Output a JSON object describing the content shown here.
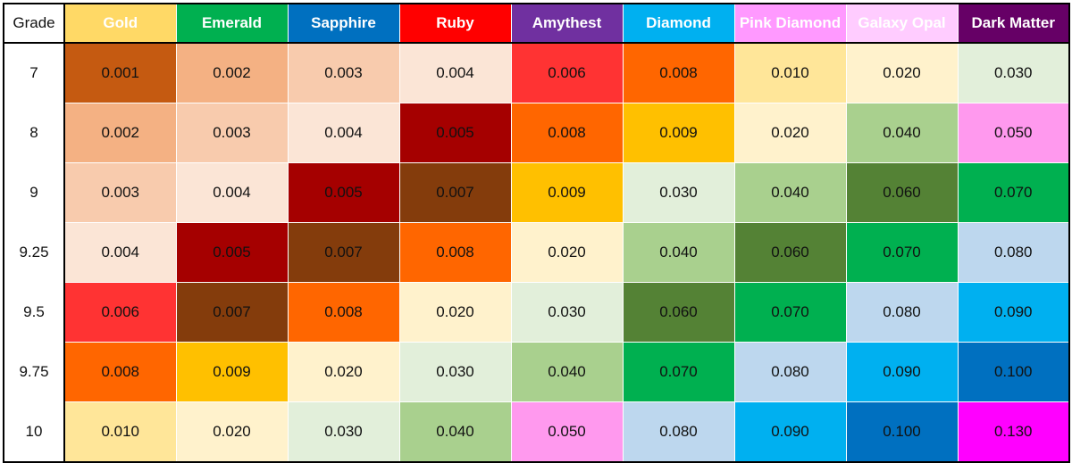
{
  "header": {
    "grade_label": "Grade",
    "columns": [
      {
        "label": "Gold",
        "bg": "#FFD966",
        "fg": "#FFFFFF"
      },
      {
        "label": "Emerald",
        "bg": "#00B050",
        "fg": "#FFFFFF"
      },
      {
        "label": "Sapphire",
        "bg": "#0070C0",
        "fg": "#FFFFFF"
      },
      {
        "label": "Ruby",
        "bg": "#FF0000",
        "fg": "#FFFFFF"
      },
      {
        "label": "Amythest",
        "bg": "#7030A0",
        "fg": "#FFFFFF"
      },
      {
        "label": "Diamond",
        "bg": "#00B0F0",
        "fg": "#FFFFFF"
      },
      {
        "label": "Pink Diamond",
        "bg": "#FF99FF",
        "fg": "#FFFFFF"
      },
      {
        "label": "Galaxy Opal",
        "bg": "#FFCCFF",
        "fg": "#FFFFFF"
      },
      {
        "label": "Dark Matter",
        "bg": "#660066",
        "fg": "#FFFFFF"
      }
    ]
  },
  "colors": {
    "0.001": "#C55A11",
    "0.002": "#F4B183",
    "0.003": "#F8CBAD",
    "0.004": "#FBE5D6",
    "0.005": "#A50000",
    "0.006": "#FF3333",
    "0.007": "#843C0C",
    "0.008": "#FF6600",
    "0.009": "#FFC000",
    "0.010": "#FFE699",
    "0.020": "#FFF2CC",
    "0.030": "#E2EFDA",
    "0.040": "#A9D08E",
    "0.050": "#FF99EE",
    "0.060": "#548235",
    "0.070": "#00B050",
    "0.080": "#BDD7EE",
    "0.090": "#00B0F0",
    "0.100": "#0070C0",
    "0.130": "#FF00FF"
  },
  "rows": [
    {
      "grade": "7",
      "values": [
        "0.001",
        "0.002",
        "0.003",
        "0.004",
        "0.006",
        "0.008",
        "0.010",
        "0.020",
        "0.030"
      ]
    },
    {
      "grade": "8",
      "values": [
        "0.002",
        "0.003",
        "0.004",
        "0.005",
        "0.008",
        "0.009",
        "0.020",
        "0.040",
        "0.050"
      ]
    },
    {
      "grade": "9",
      "values": [
        "0.003",
        "0.004",
        "0.005",
        "0.007",
        "0.009",
        "0.030",
        "0.040",
        "0.060",
        "0.070"
      ]
    },
    {
      "grade": "9.25",
      "values": [
        "0.004",
        "0.005",
        "0.007",
        "0.008",
        "0.020",
        "0.040",
        "0.060",
        "0.070",
        "0.080"
      ]
    },
    {
      "grade": "9.5",
      "values": [
        "0.006",
        "0.007",
        "0.008",
        "0.020",
        "0.030",
        "0.060",
        "0.070",
        "0.080",
        "0.090"
      ]
    },
    {
      "grade": "9.75",
      "values": [
        "0.008",
        "0.009",
        "0.020",
        "0.030",
        "0.040",
        "0.070",
        "0.080",
        "0.090",
        "0.100"
      ]
    },
    {
      "grade": "10",
      "values": [
        "0.010",
        "0.020",
        "0.030",
        "0.040",
        "0.050",
        "0.080",
        "0.090",
        "0.100",
        "0.130"
      ]
    }
  ]
}
